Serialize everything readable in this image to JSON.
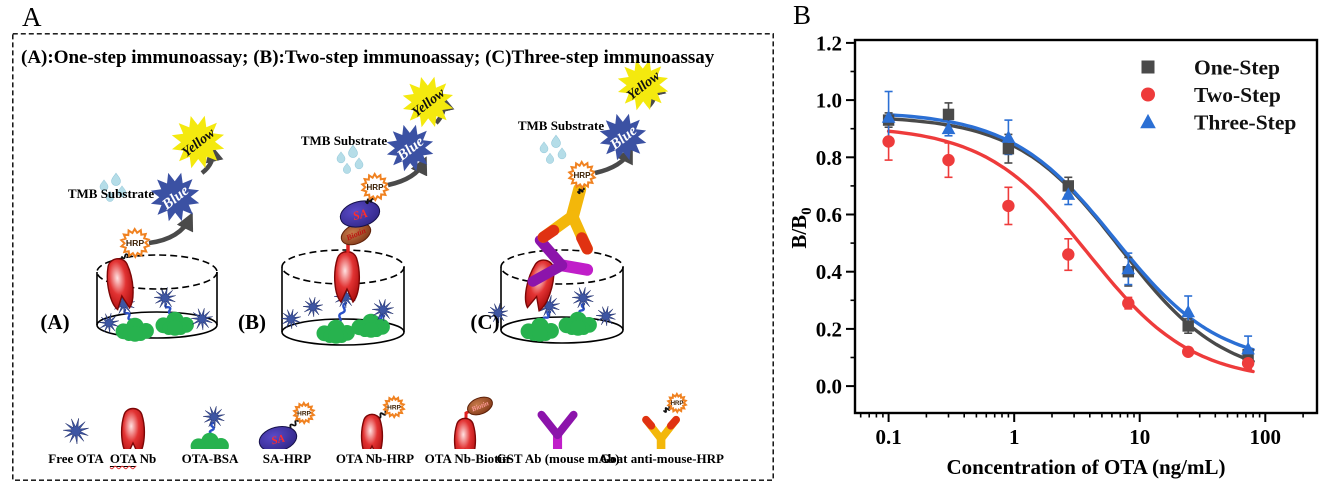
{
  "panel_a": {
    "label": "A",
    "title": "(A):One-step immunoassay; (B):Two-step immunoassay; (C)Three-step immunoassay",
    "diagrams": [
      {
        "label": "(A)",
        "name": "one-step-immunoassay",
        "tmb_label": "TMB Substrate",
        "hrp_label": "HRP",
        "blue_label": "Blue",
        "yellow_label": "Yellow"
      },
      {
        "label": "(B)",
        "name": "two-step-immunoassay",
        "tmb_label": "TMB Substrate",
        "hrp_label": "HRP",
        "blue_label": "Blue",
        "yellow_label": "Yellow",
        "sa_label": "SA",
        "biotin_label": "Biotin"
      },
      {
        "label": "(C)",
        "name": "three-step-immunoassay",
        "tmb_label": "TMB Substrate",
        "hrp_label": "HRP",
        "blue_label": "Blue",
        "yellow_label": "Yellow"
      }
    ],
    "legend": [
      {
        "label": "Free OTA",
        "icon": "free-ota-icon"
      },
      {
        "label": "OTA Nb",
        "icon": "ota-nb-icon",
        "underline_word": "OTA"
      },
      {
        "label": "OTA-BSA",
        "icon": "ota-bsa-icon"
      },
      {
        "label": "SA-HRP",
        "icon": "sa-hrp-icon"
      },
      {
        "label": "OTA Nb-HRP",
        "icon": "ota-nb-hrp-icon"
      },
      {
        "label": "OTA Nb-Biotin",
        "icon": "ota-nb-biotin-icon"
      },
      {
        "label": "GST Ab (mouse mAb)",
        "icon": "gst-ab-icon"
      },
      {
        "label": "Goat anti-mouse-HRP",
        "icon": "goat-anti-mouse-hrp-icon"
      }
    ],
    "colors": {
      "yellow_burst": "#f4e90e",
      "blue_burst": "#3b51a3",
      "hrp_orange": "#f08221",
      "nanobody_red": "#cc1111",
      "ota_star_blue": "#3d55a3",
      "bsa_green": "#27b24e",
      "droplet_blue": "#b5dde8",
      "sa_navy": "#2c2380",
      "biotin_brown": "#8a3c20",
      "gst_purple_arm": "#8c14ab",
      "gst_purple_stem": "#c01ec9",
      "goat_gold": "#f3b70a",
      "goat_tip_red": "#e03212",
      "arrow_gray": "#4a4a4a"
    }
  },
  "panel_b": {
    "label": "B"
  },
  "chart_data": {
    "type": "scatter",
    "title": "",
    "xlabel": "Concentration of OTA (ng/mL)",
    "ylabel": "B/B0",
    "ylabel_parts": {
      "base": "B/B",
      "sub": "0"
    },
    "x_scale": "log",
    "xlim": [
      0.054,
      258
    ],
    "ylim": [
      -0.094,
      1.21
    ],
    "x_ticks": [
      0.1,
      1,
      10,
      100
    ],
    "x_tick_labels": [
      "0.1",
      "1",
      "10",
      "100"
    ],
    "y_ticks": [
      0.0,
      0.2,
      0.4,
      0.6,
      0.8,
      1.0,
      1.2
    ],
    "y_tick_labels": [
      "0.0",
      "0.2",
      "0.4",
      "0.6",
      "0.8",
      "1.0",
      "1.2"
    ],
    "grid": false,
    "legend_position": "top-right",
    "x": [
      0.1,
      0.3,
      0.9,
      2.7,
      8.1,
      24.3,
      72.9
    ],
    "series": [
      {
        "name": "One-Step",
        "marker": "square",
        "color": "#4a4a4a",
        "values": [
          0.93,
          0.95,
          0.83,
          0.7,
          0.4,
          0.21,
          0.11
        ],
        "errors": [
          0.025,
          0.04,
          0.05,
          0.03,
          0.05,
          0.025,
          0.015
        ],
        "fit_4pl": {
          "top": 0.945,
          "bottom": 0.02,
          "ic50": 7.0,
          "hill": 1.05
        }
      },
      {
        "name": "Two-Step",
        "marker": "circle",
        "color": "#ee3b3b",
        "values": [
          0.855,
          0.79,
          0.63,
          0.46,
          0.29,
          0.12,
          0.08
        ],
        "errors": [
          0.065,
          0.06,
          0.065,
          0.055,
          0.02,
          0.01,
          0.02
        ],
        "fit_4pl": {
          "top": 0.91,
          "bottom": 0.015,
          "ic50": 3.9,
          "hill": 1.05
        }
      },
      {
        "name": "Three-Step",
        "marker": "triangle",
        "color": "#2b6fd4",
        "values": [
          0.94,
          0.9,
          0.87,
          0.67,
          0.41,
          0.26,
          0.13
        ],
        "errors": [
          0.09,
          0.025,
          0.06,
          0.035,
          0.055,
          0.055,
          0.045
        ],
        "fit_4pl": {
          "top": 0.96,
          "bottom": 0.07,
          "ic50": 6.3,
          "hill": 1.05
        }
      }
    ]
  }
}
